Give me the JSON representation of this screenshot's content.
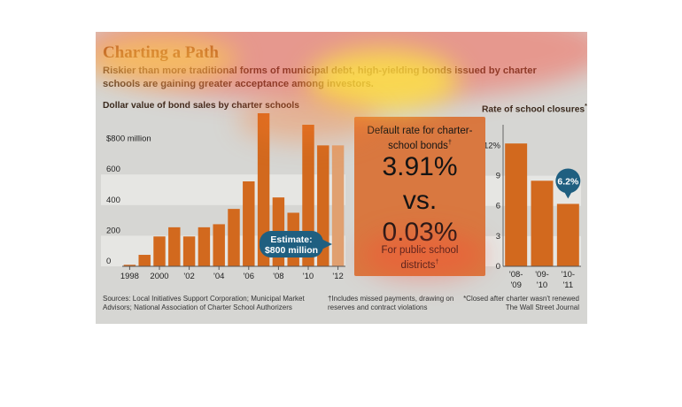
{
  "header": {
    "title": "Charting a Path",
    "subtitle": "Riskier than more traditional forms of municipal debt, high-yielding bonds issued by charter schools are gaining greater acceptance among investors."
  },
  "colors": {
    "panel": "#d6d6d3",
    "bar": "#d2691e",
    "estimate_bar": "#e0a070",
    "callout": "#1f5f80",
    "title": "#7a3b14",
    "midbox": "#d97840"
  },
  "middle": {
    "heading": "Default rate for charter-school bonds",
    "heading_mark": "†",
    "value_charter": "3.91%",
    "vs": "vs.",
    "value_public": "0.03%",
    "public_label": "For public school districts",
    "public_mark": "†"
  },
  "left_chart": {
    "title": "Dollar value of bond sales by charter schools",
    "top_tick_label": "$800 million",
    "callout_line1": "Estimate:",
    "callout_line2": "$800 million"
  },
  "right_chart": {
    "title": "Rate of school closures",
    "title_mark": "*",
    "callout": "6.2%"
  },
  "notes": {
    "sources": "Sources: Local Initiatives Support Corporation; Municipal Market Advisors; National Association of Charter School Authorizers",
    "dagger": "†Includes missed payments, drawing on reserves and contract violations",
    "asterisk": "*Closed after charter wasn't renewed",
    "credit": "The Wall Street Journal"
  },
  "chart_data": [
    {
      "type": "bar",
      "title": "Dollar value of bond sales by charter schools",
      "x": [
        1998,
        1999,
        2000,
        2001,
        2002,
        2003,
        2004,
        2005,
        2006,
        2007,
        2008,
        2009,
        2010,
        2011,
        2012
      ],
      "x_tick_labels": [
        "1998",
        "2000",
        "'02",
        "'04",
        "'06",
        "'08",
        "'10",
        "'12"
      ],
      "x_tick_years": [
        1998,
        2000,
        2002,
        2004,
        2006,
        2008,
        2010,
        2012
      ],
      "y_ticks": [
        0,
        200,
        400,
        600,
        800
      ],
      "y_tick_labels": [
        "0",
        "200",
        "400",
        "600",
        "$800 million"
      ],
      "values": [
        10,
        75,
        195,
        255,
        195,
        255,
        275,
        375,
        555,
        1000,
        450,
        350,
        925,
        790,
        790
      ],
      "estimate_index": 14,
      "ylabel": "$ million",
      "ylim": [
        0,
        1000
      ],
      "grid": "bands",
      "annotation": "Estimate: $800 million"
    },
    {
      "type": "bar",
      "title": "Rate of school closures*",
      "categories": [
        "'08-'09",
        "'09-'10",
        "'10-'11"
      ],
      "values": [
        12.2,
        8.5,
        6.2
      ],
      "y_ticks": [
        0,
        3,
        6,
        9,
        12
      ],
      "y_tick_labels": [
        "0",
        "3",
        "6",
        "9",
        "12%"
      ],
      "ylim": [
        0,
        14.5
      ],
      "grid": "bands",
      "annotation": "6.2%"
    }
  ]
}
